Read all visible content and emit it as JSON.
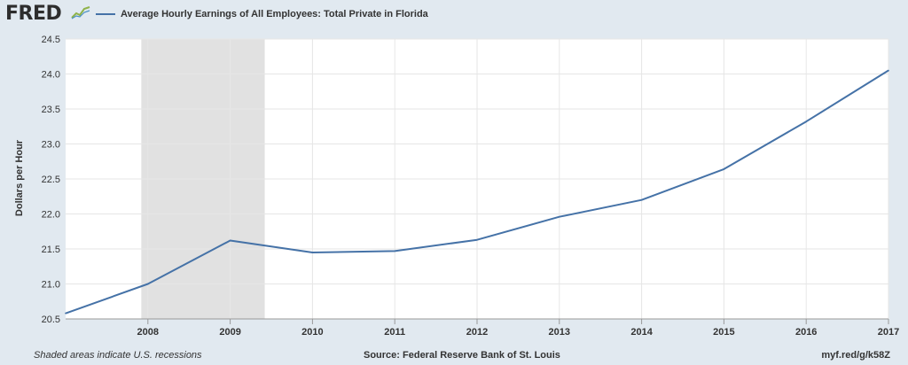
{
  "header": {
    "logo_text": "FRED",
    "logo_graph_icon": "line-graph-icon",
    "series_label": "Average Hourly Earnings of All Employees: Total Private in Florida",
    "series_color": "#4572a7"
  },
  "footer": {
    "note": "Shaded areas indicate U.S. recessions",
    "source": "Source: Federal Reserve Bank of St. Louis",
    "link": "myf.red/g/k58Z"
  },
  "chart_data": {
    "type": "line",
    "title": "",
    "ylabel": "Dollars per Hour",
    "ylim": [
      20.5,
      24.5
    ],
    "xlim": [
      2007.0,
      2017.0
    ],
    "yticks": [
      "20.5",
      "21.0",
      "21.5",
      "22.0",
      "22.5",
      "23.0",
      "23.5",
      "24.0",
      "24.5"
    ],
    "xticks": [
      "2008",
      "2009",
      "2010",
      "2011",
      "2012",
      "2013",
      "2014",
      "2015",
      "2016",
      "2017"
    ],
    "grid": true,
    "recession_shading": [
      {
        "start": 2007.92,
        "end": 2009.42
      }
    ],
    "series": [
      {
        "name": "Average Hourly Earnings of All Employees: Total Private in Florida",
        "color": "#4572a7",
        "x": [
          2007.0,
          2008.0,
          2009.0,
          2010.0,
          2011.0,
          2012.0,
          2013.0,
          2014.0,
          2015.0,
          2016.0,
          2017.0
        ],
        "y": [
          20.58,
          21.0,
          21.62,
          21.45,
          21.47,
          21.63,
          21.96,
          22.2,
          22.64,
          23.32,
          24.05
        ]
      }
    ]
  }
}
